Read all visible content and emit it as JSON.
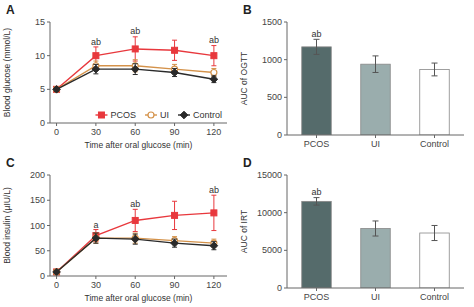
{
  "chart_data": [
    {
      "type": "line",
      "title": "A",
      "x_label": "Time after oral glucose (min)",
      "y_label": "Blood glucose (mmol/L)",
      "x": [
        0,
        30,
        60,
        90,
        120
      ],
      "xlim": [
        -5,
        130
      ],
      "xticks": [
        0,
        30,
        60,
        90,
        120
      ],
      "ylim": [
        0,
        15
      ],
      "yticks": [
        0,
        5,
        10,
        15
      ],
      "legend": "lower right",
      "series": [
        {
          "name": "PCOS",
          "color": "#e8383d",
          "marker": "square",
          "values": [
            5.0,
            10.0,
            11.0,
            10.8,
            10.0
          ],
          "errors": [
            0.3,
            1.3,
            1.8,
            1.5,
            1.5
          ]
        },
        {
          "name": "UI",
          "color": "#d4924a",
          "marker": "circle",
          "values": [
            5.0,
            8.5,
            8.5,
            8.0,
            7.5
          ],
          "errors": [
            0.3,
            0.7,
            0.9,
            0.7,
            0.6
          ]
        },
        {
          "name": "Control",
          "color": "#2a2a2a",
          "marker": "diamond",
          "values": [
            5.0,
            8.0,
            8.0,
            7.5,
            6.5
          ],
          "errors": [
            0.3,
            0.7,
            0.8,
            0.6,
            0.5
          ]
        }
      ],
      "annotations": [
        {
          "text": "ab",
          "x": 30,
          "y": 11.5
        },
        {
          "text": "ab",
          "x": 60,
          "y": 13.0
        },
        {
          "text": "ab",
          "x": 120,
          "y": 11.8
        }
      ]
    },
    {
      "type": "bar",
      "title": "B",
      "y_label": "AUC of OGTT",
      "categories": [
        "PCOS",
        "UI",
        "Control"
      ],
      "values": [
        1170,
        940,
        870
      ],
      "errors": [
        100,
        110,
        85
      ],
      "colors": [
        "#556b6b",
        "#9aadad",
        "#ffffff"
      ],
      "ylim": [
        0,
        1500
      ],
      "yticks": [
        0,
        500,
        1000,
        1500
      ],
      "annotations": [
        {
          "text": "ab",
          "x": "PCOS",
          "y": 1285
        }
      ]
    },
    {
      "type": "line",
      "title": "C",
      "x_label": "Time after oral glucose (min)",
      "y_label": "Blood insulin (µIU/L)",
      "x": [
        0,
        30,
        60,
        90,
        120
      ],
      "xlim": [
        -5,
        130
      ],
      "xticks": [
        0,
        30,
        60,
        90,
        120
      ],
      "ylim": [
        0,
        200
      ],
      "yticks": [
        0,
        50,
        100,
        150,
        200
      ],
      "series": [
        {
          "name": "PCOS",
          "color": "#e8383d",
          "marker": "square",
          "values": [
            8.0,
            80.0,
            110.0,
            120.0,
            125.0
          ],
          "errors": [
            2.0,
            12.0,
            22.0,
            28.0,
            35.0
          ]
        },
        {
          "name": "UI",
          "color": "#d4924a",
          "marker": "circle",
          "values": [
            8.0,
            75.0,
            75.0,
            70.0,
            65.0
          ],
          "errors": [
            2.0,
            10.0,
            10.0,
            8.0,
            8.0
          ]
        },
        {
          "name": "Control",
          "color": "#2a2a2a",
          "marker": "diamond",
          "values": [
            8.0,
            75.0,
            73.0,
            65.0,
            60.0
          ],
          "errors": [
            2.0,
            10.0,
            10.0,
            8.0,
            8.0
          ]
        }
      ],
      "annotations": [
        {
          "text": "a",
          "x": 30,
          "y": 93
        },
        {
          "text": "ab",
          "x": 60,
          "y": 135
        },
        {
          "text": "ab",
          "x": 120,
          "y": 163
        }
      ]
    },
    {
      "type": "bar",
      "title": "D",
      "y_label": "AUC of IRT",
      "categories": [
        "PCOS",
        "UI",
        "Control"
      ],
      "values": [
        11500,
        7900,
        7300
      ],
      "errors": [
        500,
        1000,
        1000
      ],
      "colors": [
        "#556b6b",
        "#9aadad",
        "#ffffff"
      ],
      "ylim": [
        0,
        15000
      ],
      "yticks": [
        0,
        5000,
        10000,
        15000
      ],
      "annotations": [
        {
          "text": "ab",
          "x": "PCOS",
          "y": 12150
        }
      ]
    }
  ]
}
